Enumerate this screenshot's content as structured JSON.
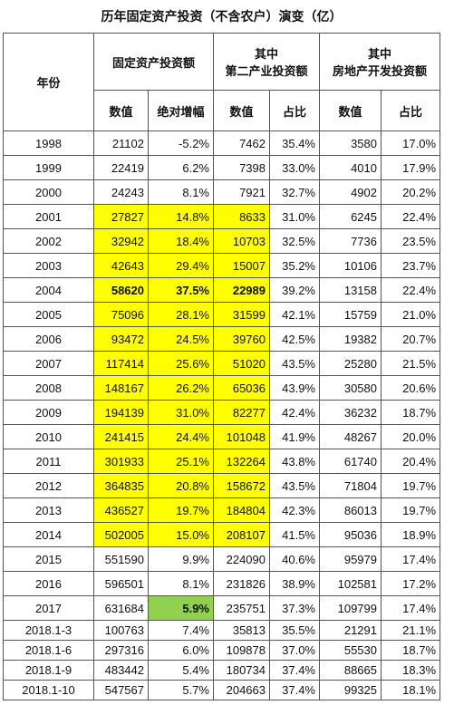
{
  "title": "历年固定资产投资（不含农户）演变（亿）",
  "header": {
    "year": "年份",
    "groups": [
      "固定资产投资额",
      "其中\n第二产业投资额",
      "其中\n房地产开发投资额"
    ],
    "sub": [
      "数值",
      "绝对增幅",
      "数值",
      "占比",
      "数值",
      "占比"
    ]
  },
  "rows": [
    [
      "1998",
      "21102",
      "-5.2%",
      "7462",
      "35.4%",
      "3580",
      "17.0%"
    ],
    [
      "1999",
      "22419",
      "6.2%",
      "7398",
      "33.0%",
      "4010",
      "17.9%"
    ],
    [
      "2000",
      "24243",
      "8.1%",
      "7921",
      "32.7%",
      "4902",
      "20.2%"
    ],
    [
      "2001",
      "27827",
      "14.8%",
      "8633",
      "31.0%",
      "6245",
      "22.4%"
    ],
    [
      "2002",
      "32942",
      "18.4%",
      "10703",
      "32.5%",
      "7736",
      "23.5%"
    ],
    [
      "2003",
      "42643",
      "29.4%",
      "15007",
      "35.2%",
      "10106",
      "23.7%"
    ],
    [
      "2004",
      "58620",
      "37.5%",
      "22989",
      "39.2%",
      "13158",
      "22.4%"
    ],
    [
      "2005",
      "75096",
      "28.1%",
      "31599",
      "42.1%",
      "15759",
      "21.0%"
    ],
    [
      "2006",
      "93472",
      "24.5%",
      "39760",
      "42.5%",
      "19382",
      "20.7%"
    ],
    [
      "2007",
      "117414",
      "25.6%",
      "51020",
      "43.5%",
      "25280",
      "21.5%"
    ],
    [
      "2008",
      "148167",
      "26.2%",
      "65036",
      "43.9%",
      "30580",
      "20.6%"
    ],
    [
      "2009",
      "194139",
      "31.0%",
      "82277",
      "42.4%",
      "36232",
      "18.7%"
    ],
    [
      "2010",
      "241415",
      "24.4%",
      "101048",
      "41.9%",
      "48267",
      "20.0%"
    ],
    [
      "2011",
      "301933",
      "25.1%",
      "132264",
      "43.8%",
      "61740",
      "20.4%"
    ],
    [
      "2012",
      "364835",
      "20.8%",
      "158672",
      "43.5%",
      "71804",
      "19.7%"
    ],
    [
      "2013",
      "436527",
      "19.7%",
      "184804",
      "42.3%",
      "86013",
      "19.7%"
    ],
    [
      "2014",
      "502005",
      "15.0%",
      "208107",
      "41.5%",
      "95036",
      "18.9%"
    ],
    [
      "2015",
      "551590",
      "9.9%",
      "224090",
      "40.6%",
      "95979",
      "17.4%"
    ],
    [
      "2016",
      "596501",
      "8.1%",
      "231826",
      "38.9%",
      "102581",
      "17.2%"
    ],
    [
      "2017",
      "631684",
      "5.9%",
      "235751",
      "37.3%",
      "109799",
      "17.4%"
    ],
    [
      "2018.1-3",
      "100763",
      "7.4%",
      "35813",
      "35.5%",
      "21291",
      "21.1%"
    ],
    [
      "2018.1-6",
      "297316",
      "6.0%",
      "109878",
      "37.0%",
      "55530",
      "18.7%"
    ],
    [
      "2018.1-9",
      "483442",
      "5.4%",
      "180734",
      "37.4%",
      "88665",
      "18.3%"
    ],
    [
      "2018.1-10",
      "547567",
      "5.7%",
      "204663",
      "37.4%",
      "99325",
      "18.1%"
    ]
  ]
}
